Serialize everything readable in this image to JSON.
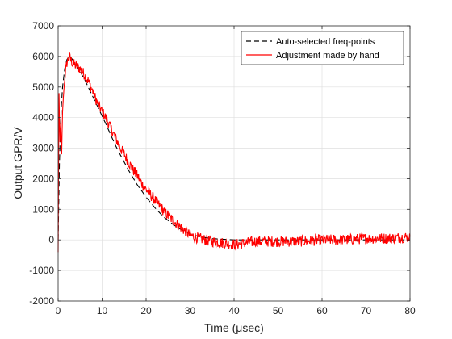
{
  "chart_data": {
    "type": "line",
    "title": "",
    "xlabel": "Time (μsec)",
    "ylabel": "Output GPR/V",
    "xlim": [
      0,
      80
    ],
    "ylim": [
      -2000,
      7000
    ],
    "xticks": [
      0,
      10,
      20,
      30,
      40,
      50,
      60,
      70,
      80
    ],
    "yticks": [
      -2000,
      -1000,
      0,
      1000,
      2000,
      3000,
      4000,
      5000,
      6000,
      7000
    ],
    "grid": true,
    "legend_position": "top-right",
    "series": [
      {
        "name": "Auto-selected freq-points",
        "color": "#000000",
        "style": "dashed",
        "x": [
          0,
          0.3,
          0.7,
          1.0,
          1.5,
          2.0,
          2.5,
          3.0,
          4.0,
          5.0,
          6.0,
          7.0,
          8.0,
          9.0,
          10.0,
          11.0,
          12.0,
          13.0,
          14.0,
          15.0,
          16.0,
          17.0,
          18.0,
          19.0,
          20.0,
          22.0,
          24.0,
          26.0,
          28.0,
          30.0,
          32.0,
          35.0,
          40.0,
          50.0,
          60.0,
          70.0,
          80.0
        ],
        "y": [
          0,
          2500,
          4300,
          5000,
          5600,
          5900,
          6000,
          5950,
          5750,
          5500,
          5250,
          4950,
          4650,
          4350,
          4050,
          3750,
          3420,
          3100,
          2820,
          2550,
          2280,
          2040,
          1800,
          1600,
          1400,
          1050,
          750,
          520,
          330,
          200,
          110,
          40,
          0,
          0,
          0,
          0,
          0
        ]
      },
      {
        "name": "Adjustment made by hand",
        "color": "#ff0000",
        "style": "solid",
        "x": [
          0,
          0.2,
          0.4,
          0.6,
          0.8,
          1.0,
          1.3,
          1.6,
          2.0,
          2.5,
          3.0,
          3.5,
          4.0,
          5.0,
          6.0,
          7.0,
          8.0,
          9.0,
          10.0,
          11.0,
          12.0,
          13.0,
          14.0,
          15.0,
          16.0,
          17.0,
          18.0,
          19.0,
          20.0,
          22.0,
          24.0,
          26.0,
          28.0,
          30.0,
          32.0,
          35.0,
          40.0,
          45.0,
          50.0,
          55.0,
          60.0,
          65.0,
          70.0,
          75.0,
          80.0
        ],
        "y": [
          -400,
          4800,
          3200,
          3800,
          2800,
          4200,
          4900,
          5400,
          5800,
          6000,
          5850,
          5750,
          5700,
          5600,
          5400,
          5150,
          4800,
          4450,
          4200,
          3950,
          3650,
          3350,
          3050,
          2800,
          2550,
          2300,
          2100,
          1850,
          1650,
          1300,
          950,
          650,
          400,
          150,
          50,
          -50,
          -150,
          -50,
          -50,
          -50,
          0,
          0,
          50,
          50,
          100
        ]
      }
    ]
  }
}
